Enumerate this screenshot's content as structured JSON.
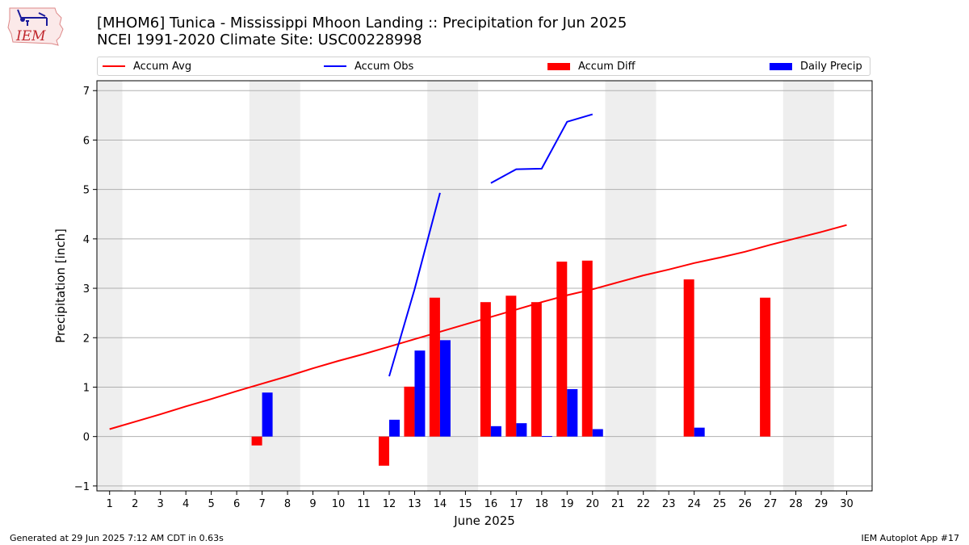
{
  "header": {
    "logo_text": "IEM",
    "title_line1": "[MHOM6] Tunica - Mississippi Mhoon Landing :: Precipitation for Jun 2025",
    "title_line2": "NCEI 1991-2020 Climate Site: USC00228998"
  },
  "legend": [
    {
      "label": "Accum Avg",
      "kind": "line",
      "color": "#ff0000"
    },
    {
      "label": "Accum Obs",
      "kind": "line",
      "color": "#0000ff"
    },
    {
      "label": "Accum Diff",
      "kind": "box",
      "color": "#ff0000"
    },
    {
      "label": "Daily Precip",
      "kind": "box",
      "color": "#0000ff"
    }
  ],
  "footer": {
    "left": "Generated at 29 Jun 2025 7:12 AM CDT in 0.63s",
    "right": "IEM Autoplot App #17"
  },
  "chart_data": {
    "type": "bar",
    "xlabel": "June 2025",
    "ylabel": "Precipitation [inch]",
    "xlim": [
      0.5,
      31
    ],
    "ylim": [
      -1.1,
      7.2
    ],
    "yticks": [
      -1,
      0,
      1,
      2,
      3,
      4,
      5,
      6,
      7
    ],
    "xticks": [
      1,
      2,
      3,
      4,
      5,
      6,
      7,
      8,
      9,
      10,
      11,
      12,
      13,
      14,
      15,
      16,
      17,
      18,
      19,
      20,
      21,
      22,
      23,
      24,
      25,
      26,
      27,
      28,
      29,
      30
    ],
    "grid": "horizontal",
    "weekend_shading": [
      [
        0.5,
        1.5
      ],
      [
        6.5,
        8.5
      ],
      [
        13.5,
        15.5
      ],
      [
        20.5,
        22.5
      ],
      [
        27.5,
        29.5
      ]
    ],
    "shading_color": "#eeeeee",
    "series": [
      {
        "name": "Accum Avg",
        "kind": "line",
        "color": "#ff0000",
        "points": [
          [
            1,
            0.15
          ],
          [
            2,
            0.3
          ],
          [
            3,
            0.45
          ],
          [
            4,
            0.61
          ],
          [
            5,
            0.76
          ],
          [
            6,
            0.92
          ],
          [
            7,
            1.07
          ],
          [
            8,
            1.22
          ],
          [
            9,
            1.38
          ],
          [
            10,
            1.53
          ],
          [
            11,
            1.67
          ],
          [
            12,
            1.82
          ],
          [
            13,
            1.97
          ],
          [
            14,
            2.12
          ],
          [
            15,
            2.27
          ],
          [
            16,
            2.42
          ],
          [
            17,
            2.57
          ],
          [
            18,
            2.72
          ],
          [
            19,
            2.86
          ],
          [
            20,
            2.98
          ],
          [
            21,
            3.12
          ],
          [
            22,
            3.26
          ],
          [
            23,
            3.38
          ],
          [
            24,
            3.51
          ],
          [
            25,
            3.62
          ],
          [
            26,
            3.74
          ],
          [
            27,
            3.88
          ],
          [
            28,
            4.01
          ],
          [
            29,
            4.14
          ],
          [
            30,
            4.28
          ]
        ]
      },
      {
        "name": "Accum Obs",
        "kind": "line",
        "color": "#0000ff",
        "segments": [
          [
            [
              12,
              1.22
            ],
            [
              13,
              2.98
            ],
            [
              14,
              4.93
            ]
          ],
          [
            [
              16,
              5.13
            ],
            [
              17,
              5.41
            ],
            [
              18,
              5.42
            ],
            [
              19,
              6.37
            ],
            [
              20,
              6.52
            ]
          ]
        ]
      },
      {
        "name": "Accum Diff",
        "kind": "bar",
        "color": "#ff0000",
        "offset": "left",
        "points": [
          [
            7,
            -0.18
          ],
          [
            12,
            -0.59
          ],
          [
            13,
            1.01
          ],
          [
            14,
            2.81
          ],
          [
            16,
            2.72
          ],
          [
            17,
            2.85
          ],
          [
            18,
            2.72
          ],
          [
            19,
            3.54
          ],
          [
            20,
            3.56
          ],
          [
            24,
            3.18
          ],
          [
            27,
            2.81
          ]
        ]
      },
      {
        "name": "Daily Precip",
        "kind": "bar",
        "color": "#0000ff",
        "offset": "right",
        "points": [
          [
            7,
            0.89
          ],
          [
            12,
            0.34
          ],
          [
            13,
            1.74
          ],
          [
            14,
            1.95
          ],
          [
            16,
            0.21
          ],
          [
            17,
            0.27
          ],
          [
            18,
            0.01
          ],
          [
            19,
            0.96
          ],
          [
            20,
            0.15
          ],
          [
            24,
            0.18
          ]
        ]
      }
    ]
  }
}
